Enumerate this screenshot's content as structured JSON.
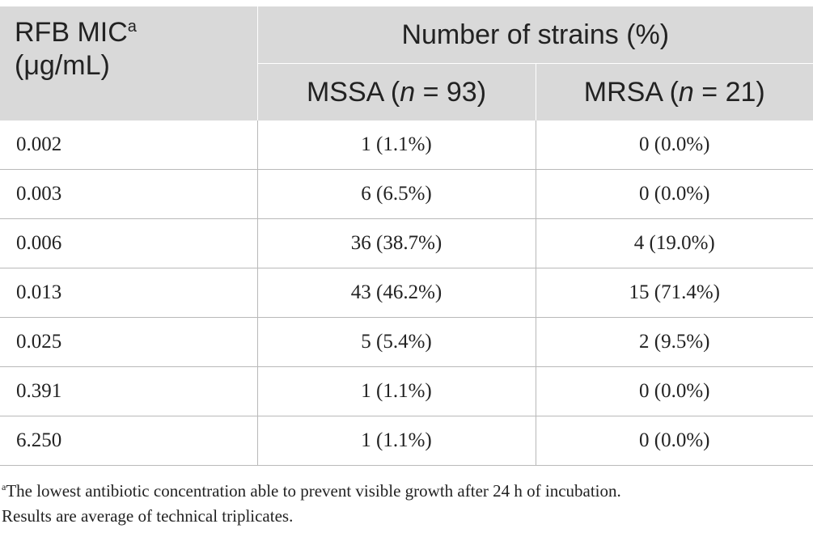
{
  "table": {
    "header": {
      "mic_label": "RFB MIC",
      "mic_label_sup": "a",
      "mic_units": "(μg/mL)",
      "group_label": "Number of strains (%)",
      "mssa": {
        "name": "MSSA (",
        "n_var": "n",
        "count": " = 93)"
      },
      "mrsa": {
        "name": "MRSA (",
        "n_var": "n",
        "count": " = 21)"
      }
    },
    "rows": [
      {
        "mic": "0.002",
        "mssa": "1 (1.1%)",
        "mrsa": "0 (0.0%)"
      },
      {
        "mic": "0.003",
        "mssa": "6 (6.5%)",
        "mrsa": "0 (0.0%)"
      },
      {
        "mic": "0.006",
        "mssa": "36 (38.7%)",
        "mrsa": "4 (19.0%)"
      },
      {
        "mic": "0.013",
        "mssa": "43 (46.2%)",
        "mrsa": "15 (71.4%)"
      },
      {
        "mic": "0.025",
        "mssa": "5 (5.4%)",
        "mrsa": "2 (9.5%)"
      },
      {
        "mic": "0.391",
        "mssa": "1 (1.1%)",
        "mrsa": "0 (0.0%)"
      },
      {
        "mic": "6.250",
        "mssa": "1 (1.1%)",
        "mrsa": "0 (0.0%)"
      }
    ]
  },
  "footnote": {
    "marker": "a",
    "line1": "The lowest antibiotic concentration able to prevent visible growth after 24 h of incubation.",
    "line2": "Results are average of technical triplicates."
  }
}
